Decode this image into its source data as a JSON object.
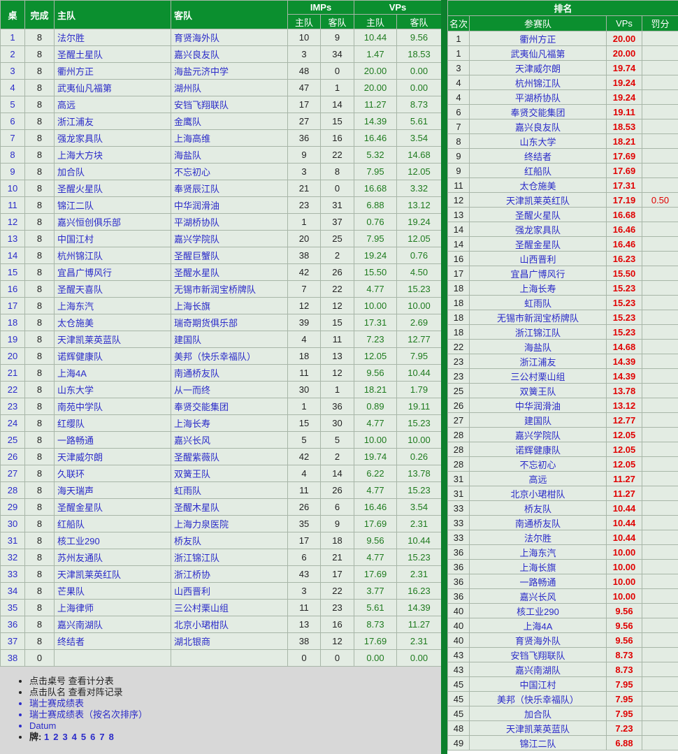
{
  "results": {
    "headers": {
      "table": "桌",
      "done": "完成",
      "home": "主队",
      "away": "客队",
      "imps": "IMPs",
      "vps": "VPs",
      "imps_home": "主队",
      "imps_away": "客队",
      "vps_home": "主队",
      "vps_away": "客队"
    },
    "rows": [
      [
        "1",
        "8",
        "法尔胜",
        "育贤海外队",
        "10",
        "9",
        "10.44",
        "9.56"
      ],
      [
        "2",
        "8",
        "圣醒土星队",
        "嘉兴良友队",
        "3",
        "34",
        "1.47",
        "18.53"
      ],
      [
        "3",
        "8",
        "衢州方正",
        "海盐元济中学",
        "48",
        "0",
        "20.00",
        "0.00"
      ],
      [
        "4",
        "8",
        "武夷仙凡福第",
        "湖州队",
        "47",
        "1",
        "20.00",
        "0.00"
      ],
      [
        "5",
        "8",
        "高远",
        "安铛飞翔联队",
        "17",
        "14",
        "11.27",
        "8.73"
      ],
      [
        "6",
        "8",
        "浙江浦友",
        "金鹰队",
        "27",
        "15",
        "14.39",
        "5.61"
      ],
      [
        "7",
        "8",
        "强龙家具队",
        "上海高维",
        "36",
        "16",
        "16.46",
        "3.54"
      ],
      [
        "8",
        "8",
        "上海大方块",
        "海盐队",
        "9",
        "22",
        "5.32",
        "14.68"
      ],
      [
        "9",
        "8",
        "加合队",
        "不忘初心",
        "3",
        "8",
        "7.95",
        "12.05"
      ],
      [
        "10",
        "8",
        "圣醒火星队",
        "奉贤辰江队",
        "21",
        "0",
        "16.68",
        "3.32"
      ],
      [
        "11",
        "8",
        "锦江二队",
        "中华润滑油",
        "23",
        "31",
        "6.88",
        "13.12"
      ],
      [
        "12",
        "8",
        "嘉兴恒创俱乐部",
        "平湖桥协队",
        "1",
        "37",
        "0.76",
        "19.24"
      ],
      [
        "13",
        "8",
        "中国江村",
        "嘉兴学院队",
        "20",
        "25",
        "7.95",
        "12.05"
      ],
      [
        "14",
        "8",
        "杭州锦江队",
        "圣醒巨蟹队",
        "38",
        "2",
        "19.24",
        "0.76"
      ],
      [
        "15",
        "8",
        "宜昌广博风行",
        "圣醒水星队",
        "42",
        "26",
        "15.50",
        "4.50"
      ],
      [
        "16",
        "8",
        "圣醒天喜队",
        "无锡市新润宝桥牌队",
        "7",
        "22",
        "4.77",
        "15.23"
      ],
      [
        "17",
        "8",
        "上海东汽",
        "上海长旗",
        "12",
        "12",
        "10.00",
        "10.00"
      ],
      [
        "18",
        "8",
        "太仓施美",
        "瑞奇期货俱乐部",
        "39",
        "15",
        "17.31",
        "2.69"
      ],
      [
        "19",
        "8",
        "天津凯莱英蓝队",
        "建国队",
        "4",
        "11",
        "7.23",
        "12.77"
      ],
      [
        "20",
        "8",
        "诺辉健康队",
        "美邦（快乐幸福队）",
        "18",
        "13",
        "12.05",
        "7.95"
      ],
      [
        "21",
        "8",
        "上海4A",
        "南通桥友队",
        "11",
        "12",
        "9.56",
        "10.44"
      ],
      [
        "22",
        "8",
        "山东大学",
        "从一而终",
        "30",
        "1",
        "18.21",
        "1.79"
      ],
      [
        "23",
        "8",
        "南苑中学队",
        "奉贤交能集团",
        "1",
        "36",
        "0.89",
        "19.11"
      ],
      [
        "24",
        "8",
        "红缨队",
        "上海长寿",
        "15",
        "30",
        "4.77",
        "15.23"
      ],
      [
        "25",
        "8",
        "一路畅通",
        "嘉兴长风",
        "5",
        "5",
        "10.00",
        "10.00"
      ],
      [
        "26",
        "8",
        "天津威尔朗",
        "圣醒紫薇队",
        "42",
        "2",
        "19.74",
        "0.26"
      ],
      [
        "27",
        "8",
        "久联环",
        "双簧王队",
        "4",
        "14",
        "6.22",
        "13.78"
      ],
      [
        "28",
        "8",
        "海天瑞声",
        "虹雨队",
        "11",
        "26",
        "4.77",
        "15.23"
      ],
      [
        "29",
        "8",
        "圣醒金星队",
        "圣醒木星队",
        "26",
        "6",
        "16.46",
        "3.54"
      ],
      [
        "30",
        "8",
        "红船队",
        "上海力泉医院",
        "35",
        "9",
        "17.69",
        "2.31"
      ],
      [
        "31",
        "8",
        "核工业290",
        "桥友队",
        "17",
        "18",
        "9.56",
        "10.44"
      ],
      [
        "32",
        "8",
        "苏州友通队",
        "浙江锦江队",
        "6",
        "21",
        "4.77",
        "15.23"
      ],
      [
        "33",
        "8",
        "天津凯莱英红队",
        "浙江桥协",
        "43",
        "17",
        "17.69",
        "2.31"
      ],
      [
        "34",
        "8",
        "芒果队",
        "山西晋利",
        "3",
        "22",
        "3.77",
        "16.23"
      ],
      [
        "35",
        "8",
        "上海律师",
        "三公村栗山组",
        "11",
        "23",
        "5.61",
        "14.39"
      ],
      [
        "36",
        "8",
        "嘉兴南湖队",
        "北京小珺柑队",
        "13",
        "16",
        "8.73",
        "11.27"
      ],
      [
        "37",
        "8",
        "终结者",
        "湖北银商",
        "38",
        "12",
        "17.69",
        "2.31"
      ],
      [
        "38",
        "0",
        "",
        "",
        "0",
        "0",
        "0.00",
        "0.00"
      ]
    ]
  },
  "notes": {
    "items": [
      "点击桌号 查看计分表",
      "点击队名 查看对阵记录",
      "瑞士赛成绩表",
      "瑞士赛成绩表（按名次排序）",
      "Datum"
    ],
    "boards_label": "牌:",
    "boards": [
      "1",
      "2",
      "3",
      "4",
      "5",
      "6",
      "7",
      "8"
    ]
  },
  "ranking": {
    "title": "排名",
    "headers": {
      "rank": "名次",
      "team": "参赛队",
      "vps": "VPs",
      "penalty": "罚分"
    },
    "rows": [
      [
        "1",
        "衢州方正",
        "20.00",
        ""
      ],
      [
        "1",
        "武夷仙凡福第",
        "20.00",
        ""
      ],
      [
        "3",
        "天津威尔朗",
        "19.74",
        ""
      ],
      [
        "4",
        "杭州锦江队",
        "19.24",
        ""
      ],
      [
        "4",
        "平湖桥协队",
        "19.24",
        ""
      ],
      [
        "6",
        "奉贤交能集团",
        "19.11",
        ""
      ],
      [
        "7",
        "嘉兴良友队",
        "18.53",
        ""
      ],
      [
        "8",
        "山东大学",
        "18.21",
        ""
      ],
      [
        "9",
        "终结者",
        "17.69",
        ""
      ],
      [
        "9",
        "红船队",
        "17.69",
        ""
      ],
      [
        "11",
        "太仓施美",
        "17.31",
        ""
      ],
      [
        "12",
        "天津凯莱英红队",
        "17.19",
        "0.50"
      ],
      [
        "13",
        "圣醒火星队",
        "16.68",
        ""
      ],
      [
        "14",
        "强龙家具队",
        "16.46",
        ""
      ],
      [
        "14",
        "圣醒金星队",
        "16.46",
        ""
      ],
      [
        "16",
        "山西晋利",
        "16.23",
        ""
      ],
      [
        "17",
        "宜昌广博风行",
        "15.50",
        ""
      ],
      [
        "18",
        "上海长寿",
        "15.23",
        ""
      ],
      [
        "18",
        "虹雨队",
        "15.23",
        ""
      ],
      [
        "18",
        "无锡市新润宝桥牌队",
        "15.23",
        ""
      ],
      [
        "18",
        "浙江锦江队",
        "15.23",
        ""
      ],
      [
        "22",
        "海盐队",
        "14.68",
        ""
      ],
      [
        "23",
        "浙江浦友",
        "14.39",
        ""
      ],
      [
        "23",
        "三公村栗山组",
        "14.39",
        ""
      ],
      [
        "25",
        "双簧王队",
        "13.78",
        ""
      ],
      [
        "26",
        "中华润滑油",
        "13.12",
        ""
      ],
      [
        "27",
        "建国队",
        "12.77",
        ""
      ],
      [
        "28",
        "嘉兴学院队",
        "12.05",
        ""
      ],
      [
        "28",
        "诺辉健康队",
        "12.05",
        ""
      ],
      [
        "28",
        "不忘初心",
        "12.05",
        ""
      ],
      [
        "31",
        "高远",
        "11.27",
        ""
      ],
      [
        "31",
        "北京小珺柑队",
        "11.27",
        ""
      ],
      [
        "33",
        "桥友队",
        "10.44",
        ""
      ],
      [
        "33",
        "南通桥友队",
        "10.44",
        ""
      ],
      [
        "33",
        "法尔胜",
        "10.44",
        ""
      ],
      [
        "36",
        "上海东汽",
        "10.00",
        ""
      ],
      [
        "36",
        "上海长旗",
        "10.00",
        ""
      ],
      [
        "36",
        "一路畅通",
        "10.00",
        ""
      ],
      [
        "36",
        "嘉兴长风",
        "10.00",
        ""
      ],
      [
        "40",
        "核工业290",
        "9.56",
        ""
      ],
      [
        "40",
        "上海4A",
        "9.56",
        ""
      ],
      [
        "40",
        "育贤海外队",
        "9.56",
        ""
      ],
      [
        "43",
        "安铛飞翔联队",
        "8.73",
        ""
      ],
      [
        "43",
        "嘉兴南湖队",
        "8.73",
        ""
      ],
      [
        "45",
        "中国江村",
        "7.95",
        ""
      ],
      [
        "45",
        "美邦（快乐幸福队）",
        "7.95",
        ""
      ],
      [
        "45",
        "加合队",
        "7.95",
        ""
      ],
      [
        "48",
        "天津凯莱英蓝队",
        "7.23",
        ""
      ],
      [
        "49",
        "锦江二队",
        "6.88",
        ""
      ]
    ]
  }
}
